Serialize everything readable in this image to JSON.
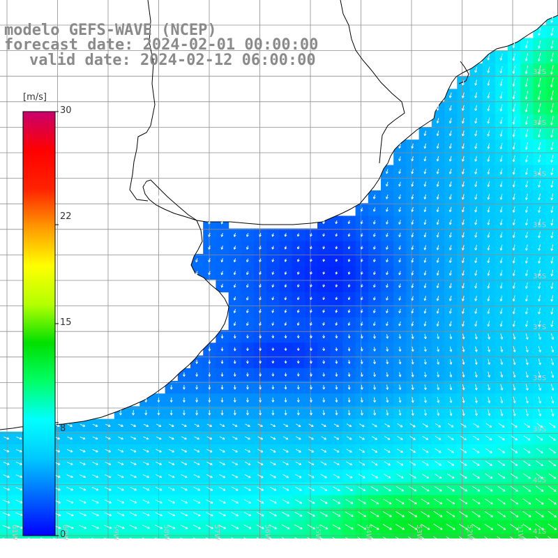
{
  "title": {
    "line1": "modelo GEFS-WAVE (NCEP)",
    "line2": "forecast date: 2024-02-01 00:00:00",
    "line3": "valid date: 2024-02-12 06:00:00"
  },
  "colorbar": {
    "unit": "[m/s]",
    "ticks": [
      "30",
      "22",
      "15",
      "8",
      "0"
    ],
    "tick_values": [
      30,
      22,
      15,
      8,
      0
    ],
    "min": 0,
    "max": 30,
    "colors": [
      "#0000ff",
      "#0066ff",
      "#00c8ff",
      "#00ffff",
      "#00ff66",
      "#00e000",
      "#b4ff00",
      "#ffff00",
      "#ff9900",
      "#ff2200",
      "#ff0000",
      "#c8006e"
    ]
  },
  "latitude_labels": [
    "32S",
    "33S",
    "34S",
    "35S",
    "36S",
    "37S",
    "38S",
    "39S",
    "40S",
    "41S"
  ],
  "longitude_labels": [
    "61W",
    "60W",
    "59W",
    "58W",
    "57W",
    "56W",
    "55W",
    "54W",
    "53W",
    "52W",
    "51W"
  ],
  "colors": {
    "land": "#ffffff",
    "coast": "#000000",
    "grid": "#8c8c8c",
    "arrow": "#ffffff",
    "title": "#8a8a8a"
  }
}
